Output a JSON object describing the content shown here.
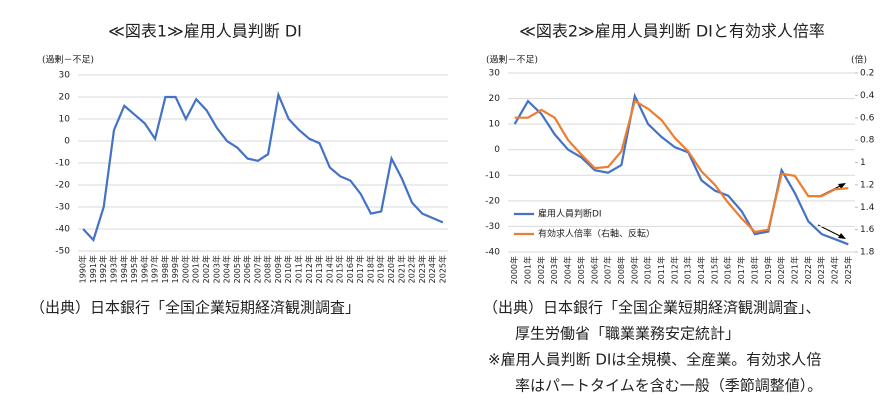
{
  "chart_data": [
    {
      "type": "line",
      "title": "≪図表1≫雇用人員判断 DI",
      "y_label": "(過剰－不足)",
      "categories": [
        "1990年",
        "1991年",
        "1992年",
        "1993年",
        "1994年",
        "1995年",
        "1996年",
        "1997年",
        "1998年",
        "1999年",
        "2000年",
        "2001年",
        "2002年",
        "2003年",
        "2004年",
        "2005年",
        "2006年",
        "2007年",
        "2008年",
        "2009年",
        "2010年",
        "2011年",
        "2012年",
        "2013年",
        "2014年",
        "2015年",
        "2016年",
        "2017年",
        "2018年",
        "2019年",
        "2020年",
        "2021年",
        "2022年",
        "2023年",
        "2024年",
        "2025年"
      ],
      "series": [
        {
          "name": "雇用人員判断DI",
          "color": "#4472c4",
          "values": [
            -40,
            -45,
            -30,
            5,
            16,
            12,
            8,
            1,
            20,
            20,
            10,
            19,
            14,
            6,
            0,
            -3,
            -8,
            -9,
            -6,
            21,
            10,
            5,
            1,
            -1,
            -12,
            -16,
            -18,
            -24,
            -33,
            -32,
            -8,
            -17,
            -28,
            -33,
            -35,
            -37
          ]
        }
      ],
      "ylim": [
        -50,
        30
      ],
      "yticks": [
        -50,
        -40,
        -30,
        -20,
        -10,
        0,
        10,
        20,
        30
      ],
      "grid": true,
      "legend": false,
      "source": [
        "（出典）日本銀行「全国企業短期経済観測調査」"
      ]
    },
    {
      "type": "line",
      "title": "≪図表2≫雇用人員判断 DIと有効求人倍率",
      "y_label": "(過剰－不足)",
      "y2_label": "(倍)",
      "categories": [
        "2000年",
        "2001年",
        "2002年",
        "2003年",
        "2004年",
        "2005年",
        "2006年",
        "2007年",
        "2008年",
        "2009年",
        "2010年",
        "2011年",
        "2012年",
        "2013年",
        "2014年",
        "2015年",
        "2016年",
        "2017年",
        "2018年",
        "2019年",
        "2020年",
        "2021年",
        "2022年",
        "2023年",
        "2024年",
        "2025年"
      ],
      "series": [
        {
          "name": "雇用人員判断DI",
          "color": "#4472c4",
          "values": [
            10,
            19,
            14,
            6,
            0,
            -3,
            -8,
            -9,
            -6,
            21,
            10,
            5,
            1,
            -1,
            -12,
            -16,
            -18,
            -24,
            -33,
            -32,
            -8,
            -17,
            -28,
            -33,
            -35,
            -37
          ]
        },
        {
          "name": "有効求人倍率（右軸、反転）",
          "color": "#ed7d31",
          "axis": "y2",
          "values": [
            0.6,
            0.6,
            0.53,
            0.6,
            0.8,
            0.93,
            1.05,
            1.04,
            0.9,
            0.45,
            0.52,
            0.62,
            0.78,
            0.9,
            1.08,
            1.2,
            1.36,
            1.5,
            1.62,
            1.6,
            1.1,
            1.12,
            1.3,
            1.3,
            1.24,
            1.23
          ]
        }
      ],
      "ylim": [
        -40,
        30
      ],
      "yticks": [
        -40,
        -30,
        -20,
        -10,
        0,
        10,
        20,
        30
      ],
      "y2lim": [
        1.8,
        0.2
      ],
      "y2ticks": [
        0.2,
        0.4,
        0.6,
        0.8,
        1,
        1.2,
        1.4,
        1.6,
        1.8
      ],
      "grid": true,
      "legend": "lower left",
      "source": [
        "（出典）日本銀行「全国企業短期経済観測調査」、",
        "厚生労働省「職業業務安定統計」",
        "※雇用人員判断 DIは全規模、全産業。有効求人倍",
        "率はパートタイムを含む一般（季節調整値）。"
      ]
    }
  ]
}
